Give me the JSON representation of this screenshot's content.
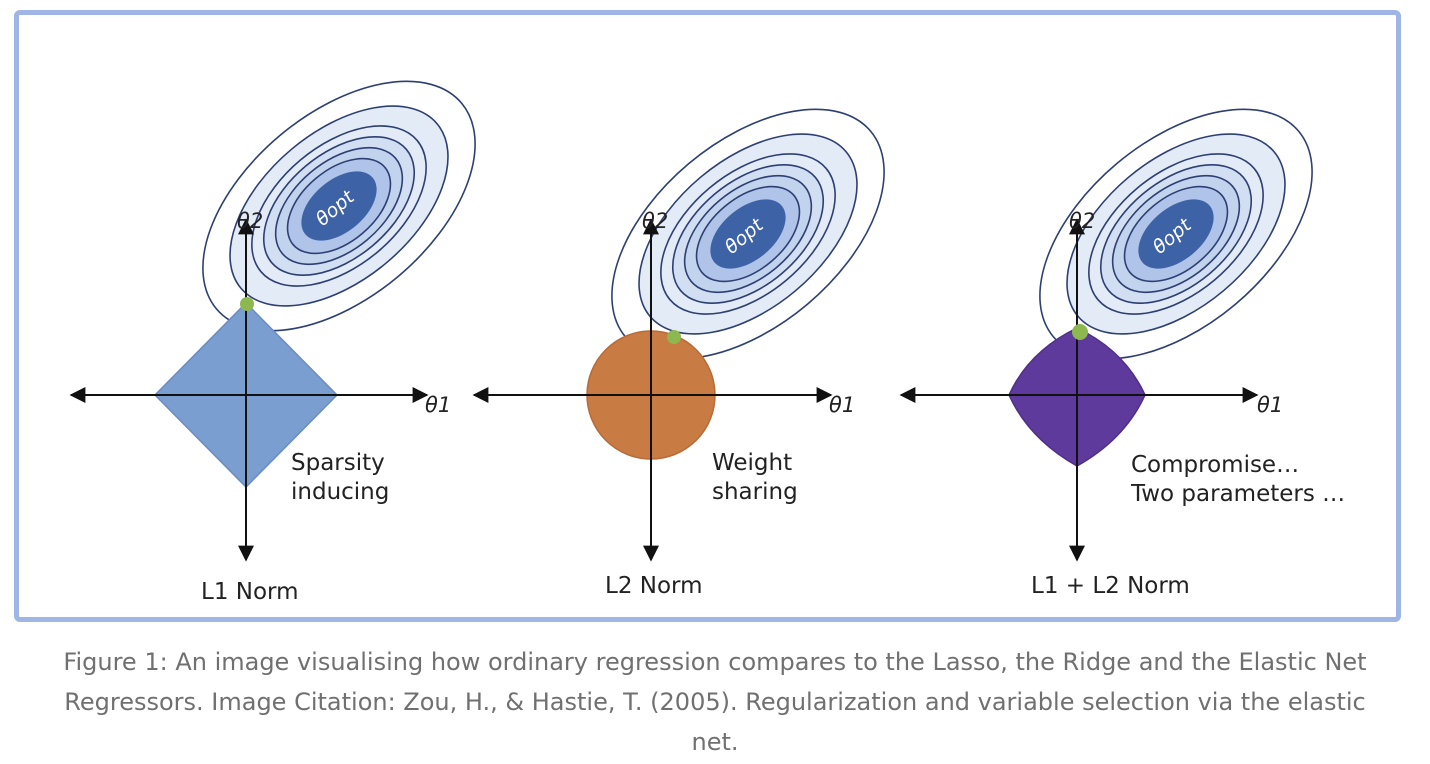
{
  "panels": [
    {
      "id": "l1",
      "title": "L1 Norm",
      "annotation": [
        "Sparsity",
        "inducing"
      ],
      "x_axis_label": "θ1",
      "y_axis_label": "θ2",
      "optimum_label": "θopt",
      "constraint_shape": "diamond",
      "constraint_color": "#7b9ed0"
    },
    {
      "id": "l2",
      "title": "L2 Norm",
      "annotation": [
        "Weight",
        "sharing"
      ],
      "x_axis_label": "θ1",
      "y_axis_label": "θ2",
      "optimum_label": "θopt",
      "constraint_shape": "circle",
      "constraint_color": "#c97b44"
    },
    {
      "id": "elastic",
      "title": "L1 + L2 Norm",
      "annotation": [
        "Compromise…",
        "Two parameters …"
      ],
      "x_axis_label": "θ1",
      "y_axis_label": "θ2",
      "optimum_label": "θopt",
      "constraint_shape": "rounded-diamond",
      "constraint_color": "#5d3a9c"
    }
  ],
  "colors": {
    "frame_border": "#9fb5e6",
    "contour_fill_light": "#e3ebf7",
    "contour_stroke": "#2e3f73",
    "contour_center": "#3d62a6",
    "tangent_point": "#8cb84f",
    "caption_text": "#707070"
  },
  "caption": "Figure 1: An image visualising how ordinary regression compares to the Lasso, the Ridge and the Elastic Net Regressors. Image Citation: Zou, H., & Hastie, T. (2005). Regularization and variable selection via the elastic net."
}
